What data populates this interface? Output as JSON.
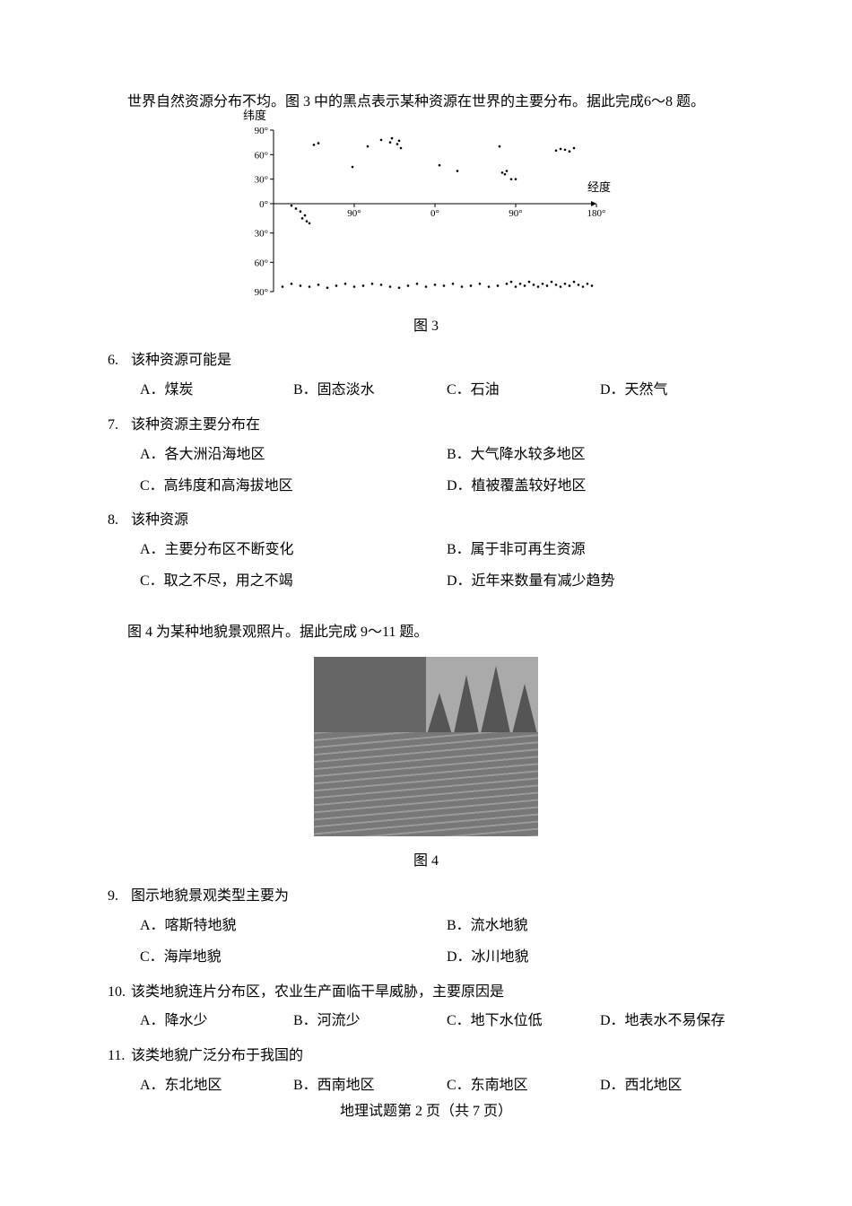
{
  "intro1": "世界自然资源分布不均。图 3 中的黑点表示某种资源在世界的主要分布。据此完成6～8 题。",
  "intro2": "图 4 为某种地貌景观照片。据此完成 9～11 题。",
  "fig3": {
    "caption": "图 3",
    "chart": {
      "type": "scatter",
      "y_axis_label": "纬度",
      "x_axis_label": "经度",
      "y_ticks": [
        90,
        60,
        30,
        0,
        30,
        60,
        90
      ],
      "x_ticks_top": [
        90,
        0,
        90,
        180
      ],
      "axis_color": "#000000",
      "background_color": "#ffffff",
      "point_color": "#000000",
      "points_approx": [
        [
          -135,
          72
        ],
        [
          -130,
          74
        ],
        [
          -92,
          45
        ],
        [
          -75,
          70
        ],
        [
          -60,
          78
        ],
        [
          -50,
          75
        ],
        [
          -48,
          80
        ],
        [
          -40,
          77
        ],
        [
          -42,
          73
        ],
        [
          -38,
          68
        ],
        [
          5,
          47
        ],
        [
          25,
          40
        ],
        [
          72,
          70
        ],
        [
          75,
          38
        ],
        [
          78,
          36
        ],
        [
          80,
          40
        ],
        [
          85,
          30
        ],
        [
          90,
          30
        ],
        [
          135,
          65
        ],
        [
          140,
          67
        ],
        [
          145,
          66
        ],
        [
          150,
          64
        ],
        [
          155,
          68
        ],
        [
          -160,
          -2
        ],
        [
          -155,
          -5
        ],
        [
          -150,
          -8
        ],
        [
          -145,
          -12
        ],
        [
          -148,
          -15
        ],
        [
          -143,
          -18
        ],
        [
          -140,
          -20
        ],
        [
          -170,
          -85
        ],
        [
          -160,
          -82
        ],
        [
          -150,
          -84
        ],
        [
          -140,
          -85
        ],
        [
          -130,
          -83
        ],
        [
          -120,
          -86
        ],
        [
          -110,
          -84
        ],
        [
          -100,
          -82
        ],
        [
          -90,
          -85
        ],
        [
          -80,
          -84
        ],
        [
          -70,
          -82
        ],
        [
          -60,
          -83
        ],
        [
          -50,
          -85
        ],
        [
          -40,
          -86
        ],
        [
          -30,
          -84
        ],
        [
          -20,
          -82
        ],
        [
          -10,
          -85
        ],
        [
          0,
          -83
        ],
        [
          10,
          -84
        ],
        [
          20,
          -82
        ],
        [
          30,
          -85
        ],
        [
          40,
          -84
        ],
        [
          50,
          -82
        ],
        [
          60,
          -85
        ],
        [
          70,
          -84
        ],
        [
          80,
          -82
        ],
        [
          85,
          -80
        ],
        [
          90,
          -85
        ],
        [
          95,
          -82
        ],
        [
          100,
          -84
        ],
        [
          105,
          -80
        ],
        [
          110,
          -83
        ],
        [
          115,
          -85
        ],
        [
          120,
          -82
        ],
        [
          125,
          -84
        ],
        [
          130,
          -80
        ],
        [
          135,
          -83
        ],
        [
          140,
          -85
        ],
        [
          145,
          -82
        ],
        [
          150,
          -84
        ],
        [
          155,
          -80
        ],
        [
          160,
          -83
        ],
        [
          165,
          -85
        ],
        [
          170,
          -82
        ],
        [
          175,
          -84
        ]
      ]
    }
  },
  "fig4": {
    "caption": "图 4",
    "photo_type": "喀斯特峰林与梯田景观"
  },
  "questions": {
    "q6": {
      "num": "6.",
      "stem": "该种资源可能是",
      "opts": {
        "A": "A．煤炭",
        "B": "B．固态淡水",
        "C": "C．石油",
        "D": "D．天然气"
      },
      "layout": "4col"
    },
    "q7": {
      "num": "7.",
      "stem": "该种资源主要分布在",
      "opts": {
        "A": "A．各大洲沿海地区",
        "B": "B．大气降水较多地区",
        "C": "C．高纬度和高海拔地区",
        "D": "D．植被覆盖较好地区"
      },
      "layout": "2col"
    },
    "q8": {
      "num": "8.",
      "stem": "该种资源",
      "opts": {
        "A": "A．主要分布区不断变化",
        "B": "B．属于非可再生资源",
        "C": "C．取之不尽，用之不竭",
        "D": "D．近年来数量有减少趋势"
      },
      "layout": "2col"
    },
    "q9": {
      "num": "9.",
      "stem": "图示地貌景观类型主要为",
      "opts": {
        "A": "A．喀斯特地貌",
        "B": "B．流水地貌",
        "C": "C．海岸地貌",
        "D": "D．冰川地貌"
      },
      "layout": "2col"
    },
    "q10": {
      "num": "10.",
      "stem": "该类地貌连片分布区，农业生产面临干旱威胁，主要原因是",
      "opts": {
        "A": "A．降水少",
        "B": "B．河流少",
        "C": "C．地下水位低",
        "D": "D．地表水不易保存"
      },
      "layout": "4col"
    },
    "q11": {
      "num": "11.",
      "stem": "该类地貌广泛分布于我国的",
      "opts": {
        "A": "A．东北地区",
        "B": "B．西南地区",
        "C": "C．东南地区",
        "D": "D．西北地区"
      },
      "layout": "4col"
    }
  },
  "footer": "地理试题第 2 页（共 7 页）"
}
